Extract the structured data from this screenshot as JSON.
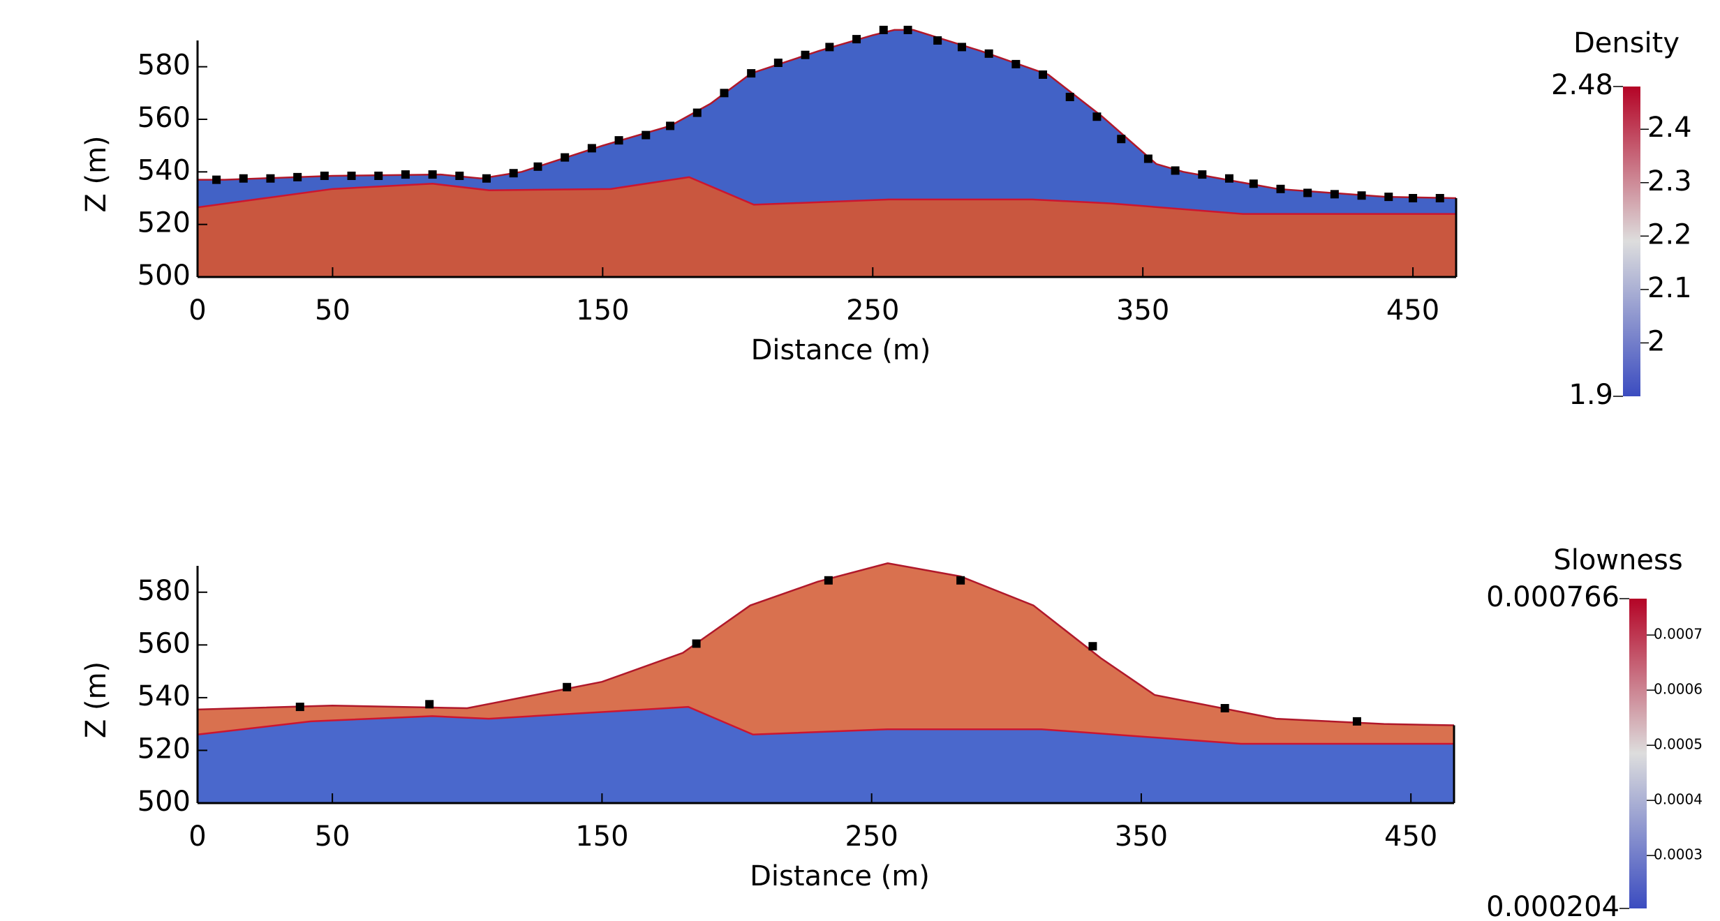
{
  "chart_data": [
    {
      "type": "section",
      "x_label": "Distance (m)",
      "y_label": "Z (m)",
      "xlim": [
        0,
        466
      ],
      "xticks": [
        0,
        50,
        150,
        250,
        350,
        450
      ],
      "ylim": [
        500,
        590
      ],
      "yticks": [
        500,
        520,
        540,
        560,
        580
      ],
      "upper_color": "#4262c6",
      "lower_color": "#c9573f",
      "surface": {
        "color": "#b0182a",
        "x": [
          0,
          10,
          50,
          90,
          105,
          120,
          150,
          175,
          190,
          205,
          230,
          250,
          258,
          265,
          290,
          315,
          335,
          355,
          365,
          400,
          440,
          466
        ],
        "z": [
          537,
          537,
          538.5,
          539,
          537.5,
          540,
          550,
          557.5,
          566,
          577.5,
          586,
          592,
          594,
          594,
          586,
          577,
          561,
          543,
          540,
          533.5,
          530.5,
          530
        ]
      },
      "interface": {
        "color": "#cc1530",
        "x": [
          0,
          50,
          87,
          108,
          153,
          182,
          206,
          256,
          309,
          338,
          387,
          466
        ],
        "z": [
          526.5,
          533.5,
          535.5,
          533,
          533.5,
          538,
          527.5,
          529.5,
          529.5,
          528,
          524,
          524
        ]
      },
      "sensors": {
        "color": "#000000",
        "x": [
          7,
          17,
          27,
          37,
          47,
          57,
          67,
          77,
          87,
          97,
          107,
          117,
          126,
          136,
          146,
          156,
          166,
          175,
          185,
          195,
          205,
          215,
          225,
          234,
          244,
          254,
          263,
          274,
          283,
          293,
          303,
          313,
          323,
          333,
          342,
          352,
          362,
          372,
          382,
          391,
          401,
          411,
          421,
          431,
          441,
          450,
          460
        ],
        "z": [
          537,
          537.5,
          537.5,
          538,
          538.5,
          538.5,
          538.5,
          539,
          539,
          538.5,
          537.5,
          539.5,
          542,
          545.5,
          549,
          552,
          554,
          557.5,
          562.5,
          570,
          577.5,
          581.5,
          584.5,
          587.5,
          590.5,
          594,
          594,
          590,
          587.5,
          585,
          581,
          577,
          568.5,
          561,
          552.5,
          545,
          540.5,
          539,
          537.5,
          535.5,
          533.5,
          532,
          531.5,
          531,
          530.5,
          530,
          530
        ]
      },
      "colorbar": {
        "title": "Density",
        "lim": [
          1.9,
          2.48
        ],
        "ticks": [
          2,
          2.1,
          2.2,
          2.3,
          2.4
        ],
        "colors": [
          "#3b4cc0",
          "#dddddd",
          "#b40426"
        ],
        "tick_font": 40
      }
    },
    {
      "type": "section",
      "x_label": "Distance (m)",
      "y_label": "Z (m)",
      "xlim": [
        0,
        466
      ],
      "xticks": [
        0,
        50,
        150,
        250,
        350,
        450
      ],
      "ylim": [
        500,
        590
      ],
      "yticks": [
        500,
        520,
        540,
        560,
        580
      ],
      "upper_color": "#d9714f",
      "lower_color": "#4a68cc",
      "surface": {
        "color": "#b0182a",
        "x": [
          0,
          50,
          100,
          110,
          150,
          180,
          205,
          230,
          256,
          283,
          310,
          335,
          355,
          400,
          440,
          466
        ],
        "z": [
          535.5,
          537,
          536,
          538,
          546,
          557,
          575,
          584,
          591,
          586,
          575,
          555,
          541,
          532,
          530,
          529.5
        ]
      },
      "interface": {
        "color": "#cc1530",
        "x": [
          0,
          42,
          87,
          108,
          182,
          206,
          256,
          313,
          387,
          466
        ],
        "z": [
          526,
          531,
          533,
          532,
          536.5,
          526,
          528,
          528,
          522.5,
          522.5
        ]
      },
      "sensors": {
        "color": "#000000",
        "x": [
          38,
          86,
          137,
          185,
          234,
          283,
          332,
          381,
          430
        ],
        "z": [
          536.5,
          537.5,
          544,
          560.5,
          584.5,
          584.5,
          559.5,
          536,
          531
        ]
      },
      "colorbar": {
        "title": "Slowness",
        "lim": [
          0.000204,
          0.000766
        ],
        "ticks": [
          0.0003,
          0.0004,
          0.0005,
          0.0006,
          0.0007
        ],
        "colors": [
          "#3b4cc0",
          "#dddddd",
          "#b40426"
        ],
        "tick_font": 20
      }
    }
  ]
}
